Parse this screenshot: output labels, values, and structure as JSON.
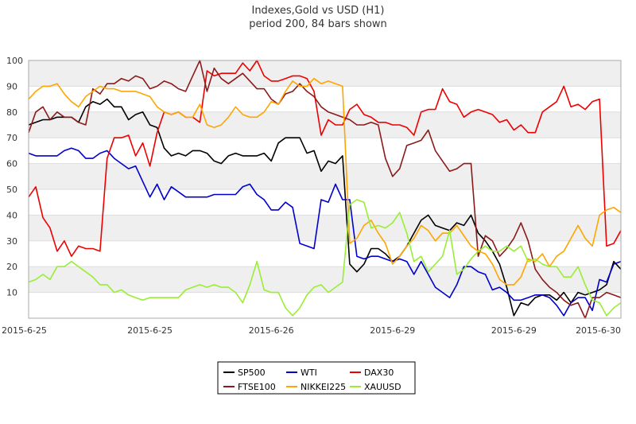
{
  "chart_data": {
    "type": "line",
    "title": "Indexes,Gold vs USD (H1)",
    "subtitle": "period 200, 84 bars shown",
    "xlabel": "",
    "ylabel": "",
    "ylim": [
      0,
      100
    ],
    "yticks": [
      10,
      20,
      30,
      40,
      50,
      60,
      70,
      80,
      90,
      100
    ],
    "grid": "alternating horizontal bands",
    "legend_position": "bottom-center",
    "x_tick_labels": [
      {
        "index": 0,
        "label": "2015-6-25"
      },
      {
        "index": 17,
        "label": "2015-6-25"
      },
      {
        "index": 34,
        "label": "2015-6-26"
      },
      {
        "index": 51,
        "label": "2015-6-29"
      },
      {
        "index": 68,
        "label": "2015-6-29"
      },
      {
        "index": 83,
        "label": "2015-6-30"
      }
    ],
    "series": [
      {
        "name": "SP500",
        "color": "#000000",
        "values": [
          75,
          76,
          77,
          77,
          78,
          78,
          78,
          76,
          82,
          84,
          83,
          85,
          82,
          82,
          77,
          79,
          80,
          75,
          74,
          66,
          63,
          64,
          63,
          65,
          65,
          64,
          61,
          60,
          63,
          64,
          63,
          63,
          63,
          64,
          61,
          68,
          70,
          70,
          70,
          64,
          65,
          57,
          61,
          60,
          63,
          21,
          18,
          21,
          27,
          27,
          25,
          22,
          24,
          28,
          33,
          38,
          40,
          36,
          35,
          34,
          37,
          36,
          40,
          33,
          30,
          26,
          21,
          12,
          1,
          6,
          5,
          8,
          9,
          9,
          7,
          10,
          6,
          10,
          9,
          10,
          11,
          13,
          22,
          19
        ]
      },
      {
        "name": "WTI",
        "color": "#0000cc",
        "values": [
          64,
          63,
          63,
          63,
          63,
          65,
          66,
          65,
          62,
          62,
          64,
          65,
          62,
          60,
          58,
          59,
          53,
          47,
          52,
          46,
          51,
          49,
          47,
          47,
          47,
          47,
          48,
          48,
          48,
          48,
          51,
          52,
          48,
          46,
          42,
          42,
          45,
          43,
          29,
          28,
          27,
          46,
          45,
          52,
          46,
          46,
          24,
          23,
          24,
          24,
          23,
          22,
          23,
          22,
          17,
          22,
          17,
          12,
          10,
          8,
          13,
          20,
          20,
          18,
          17,
          11,
          12,
          10,
          7,
          7,
          8,
          9,
          9,
          8,
          5,
          1,
          6,
          8,
          8,
          3,
          15,
          14,
          21,
          22
        ]
      },
      {
        "name": "DAX30",
        "color": "#ee0000",
        "values": [
          47,
          51,
          39,
          35,
          26,
          30,
          24,
          28,
          27,
          27,
          26,
          62,
          70,
          70,
          71,
          63,
          68,
          59,
          72,
          80,
          79,
          80,
          78,
          78,
          76,
          96,
          94,
          95,
          95,
          95,
          99,
          96,
          100,
          94,
          92,
          92,
          93,
          94,
          94,
          93,
          88,
          71,
          77,
          75,
          75,
          81,
          83,
          79,
          78,
          76,
          76,
          75,
          75,
          74,
          71,
          80,
          81,
          81,
          89,
          84,
          83,
          78,
          80,
          81,
          80,
          79,
          76,
          77,
          73,
          75,
          72,
          72,
          80,
          82,
          84,
          90,
          82,
          83,
          81,
          84,
          85,
          28,
          29,
          34
        ]
      },
      {
        "name": "FTSE100",
        "color": "#8b1a1a",
        "values": [
          72,
          80,
          82,
          77,
          80,
          78,
          78,
          76,
          75,
          89,
          87,
          91,
          91,
          93,
          92,
          94,
          93,
          89,
          90,
          92,
          91,
          89,
          88,
          94,
          100,
          88,
          97,
          93,
          91,
          93,
          95,
          92,
          89,
          89,
          85,
          83,
          87,
          88,
          91,
          88,
          86,
          82,
          80,
          79,
          78,
          77,
          75,
          75,
          76,
          75,
          62,
          55,
          58,
          67,
          68,
          69,
          73,
          65,
          61,
          57,
          58,
          60,
          60,
          24,
          32,
          30,
          24,
          27,
          31,
          37,
          30,
          19,
          15,
          12,
          10,
          7,
          5,
          6,
          0,
          8,
          8,
          10,
          9,
          8
        ]
      },
      {
        "name": "NIKKEI225",
        "color": "#ffa500",
        "values": [
          85,
          88,
          90,
          90,
          91,
          87,
          84,
          82,
          86,
          88,
          90,
          89,
          89,
          88,
          88,
          88,
          87,
          86,
          82,
          80,
          79,
          80,
          78,
          78,
          83,
          75,
          74,
          75,
          78,
          82,
          79,
          78,
          78,
          80,
          84,
          83,
          88,
          92,
          90,
          90,
          93,
          91,
          92,
          91,
          90,
          29,
          31,
          36,
          38,
          33,
          29,
          21,
          24,
          28,
          31,
          36,
          34,
          30,
          33,
          33,
          36,
          32,
          28,
          26,
          25,
          21,
          15,
          13,
          13,
          16,
          23,
          22,
          25,
          20,
          24,
          26,
          31,
          36,
          31,
          28,
          40,
          42,
          43,
          41
        ]
      },
      {
        "name": "XAUUSD",
        "color": "#99ee33",
        "values": [
          14,
          15,
          17,
          15,
          20,
          20,
          22,
          20,
          18,
          16,
          13,
          13,
          10,
          11,
          9,
          8,
          7,
          8,
          8,
          8,
          8,
          8,
          11,
          12,
          13,
          12,
          13,
          12,
          12,
          10,
          6,
          13,
          22,
          11,
          10,
          10,
          4,
          1,
          4,
          9,
          12,
          13,
          10,
          12,
          14,
          44,
          46,
          45,
          35,
          36,
          35,
          37,
          41,
          33,
          22,
          24,
          18,
          21,
          24,
          34,
          17,
          19,
          23,
          26,
          28,
          26,
          26,
          28,
          26,
          28,
          22,
          23,
          21,
          20,
          20,
          16,
          16,
          20,
          13,
          7,
          6,
          1,
          4,
          6
        ]
      }
    ]
  }
}
